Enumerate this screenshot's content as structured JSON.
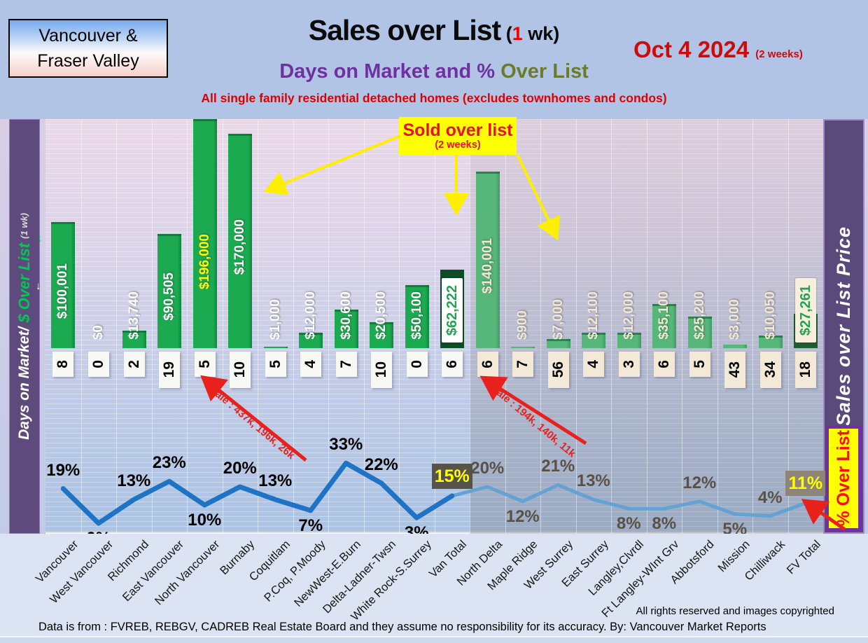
{
  "header": {
    "region_box": {
      "line1": "Vancouver &",
      "line2": "Fraser Valley"
    },
    "title": {
      "main": "Sales over List",
      "paren": " (",
      "red": "1",
      "rest": " wk)"
    },
    "subtitle": {
      "purple": "Days on Market and % ",
      "olive": "Over List"
    },
    "note": "All single family residential detached homes (excludes townhomes and condos)",
    "date": {
      "main": "Oct 4  2024",
      "sub": "(2 weeks)"
    }
  },
  "left_axis": {
    "white": "Days on Market/",
    "green": " $ Over List ",
    "small": "(1 wk)"
  },
  "right_axis": {
    "label": "Sales over List Price"
  },
  "annotations": {
    "sold_over_list_line1": "Sold over list",
    "sold_over_list_line2": "(2 weeks)",
    "van_3sale": "3 sale : 437k, 196k, 26k",
    "fv_3sale": "3 sale : 194k, 140k, 11k",
    "pct_over_list": "% Over List"
  },
  "footer": {
    "rights": "All rights reserved and  images copyrighted",
    "source": "Data is from : FVREB, REBGV, CADREB Real Estate Board and they assume no responsibility for its accuracy. By: Vancouver Market Reports"
  },
  "colors": {
    "van_bar": "#1caa50",
    "van_bar_edge": "#0f8740",
    "van_total_bar": "#0c4c26",
    "fv_bar": "#57b679",
    "fv_bar_edge": "#3f9b61",
    "fv_total_bar": "#1e5c31",
    "line_van": "#1e73c4",
    "line_fv": "#64a2d4",
    "pct_van": "#000000",
    "pct_fv": "#5a5146",
    "pct_box_van_bg": "#55534a",
    "pct_box_fv_bg": "#8d8577",
    "pct_box_text": "#ffff00",
    "days_box_van": "#f8f8f5",
    "days_box_fv": "#f3e9d6",
    "total_box_van_bg": "#ffffff",
    "total_box_fv_bg": "#f7efdc",
    "total_box_text": "#21a351",
    "bar_label_van": "#ffffff",
    "bar_label_fv": "#f2e8d4",
    "bar_label_highlight": "#ffff00"
  },
  "chart_data": {
    "type": "combo-bar-line",
    "bar_series_name": "$ Over List (1 wk)",
    "line_series_name": "% Over List",
    "days_series_name": "Days on Market",
    "fv_start_index": 12,
    "categories": [
      {
        "name": "Vancouver",
        "over_list": 100001,
        "label": "$100,001",
        "days": 8,
        "pct": 19,
        "pct_pos": "above"
      },
      {
        "name": "West Vancouver",
        "over_list": 0,
        "label": "$0",
        "days": 0,
        "pct": 0,
        "pct_pos": "below"
      },
      {
        "name": "Richmond",
        "over_list": 13740,
        "label": "$13,740",
        "days": 2,
        "pct": 13,
        "pct_pos": "above"
      },
      {
        "name": "East Vancouver",
        "over_list": 90505,
        "label": "$90,505",
        "days": 19,
        "pct": 23,
        "pct_pos": "above"
      },
      {
        "name": "North Vancouver",
        "over_list": 196000,
        "label": "$196,000",
        "days": 5,
        "pct": 10,
        "pct_pos": "below",
        "highlight": true
      },
      {
        "name": "Burnaby",
        "over_list": 170000,
        "label": "$170,000",
        "days": 10,
        "pct": 20,
        "pct_pos": "above"
      },
      {
        "name": "Coquitlam",
        "over_list": 1000,
        "label": "$1,000",
        "days": 5,
        "pct": 13,
        "pct_pos": "above"
      },
      {
        "name": "P.Coq, P.Moody",
        "over_list": 12000,
        "label": "$12,000",
        "days": 4,
        "pct": 7,
        "pct_pos": "below"
      },
      {
        "name": "NewWest-E.Burn",
        "over_list": 30600,
        "label": "$30,600",
        "days": 7,
        "pct": 33,
        "pct_pos": "above"
      },
      {
        "name": "Delta-Ladner-Twsn",
        "over_list": 20500,
        "label": "$20,500",
        "days": 10,
        "pct": 22,
        "pct_pos": "above"
      },
      {
        "name": "White Rock-S.Surrey",
        "over_list": 50100,
        "label": "$50,100",
        "days": 0,
        "pct": 3,
        "pct_pos": "below"
      },
      {
        "name": "Van Total",
        "over_list": 62222,
        "label": "$62,222",
        "days": 6,
        "pct": 15,
        "pct_pos": "above",
        "total": true
      },
      {
        "name": "North Delta",
        "over_list": 140001,
        "label": "$140,001",
        "days": 6,
        "pct": 20,
        "pct_pos": "above"
      },
      {
        "name": "Maple Ridge",
        "over_list": 900,
        "label": "$900",
        "days": 7,
        "pct": 12,
        "pct_pos": "below"
      },
      {
        "name": "West Surrey",
        "over_list": 7000,
        "label": "$7,000",
        "days": 56,
        "pct": 21,
        "pct_pos": "above"
      },
      {
        "name": "East Surrey",
        "over_list": 12100,
        "label": "$12,100",
        "days": 4,
        "pct": 13,
        "pct_pos": "above"
      },
      {
        "name": "Langley,Clvrdl",
        "over_list": 12000,
        "label": "$12,000",
        "days": 3,
        "pct": 8,
        "pct_pos": "below"
      },
      {
        "name": "Ft Langley-WInt Grv",
        "over_list": 35100,
        "label": "$35,100",
        "days": 6,
        "pct": 8,
        "pct_pos": "below"
      },
      {
        "name": "Abbotsford",
        "over_list": 25200,
        "label": "$25,200",
        "days": 5,
        "pct": 12,
        "pct_pos": "above"
      },
      {
        "name": "Mission",
        "over_list": 3000,
        "label": "$3,000",
        "days": 43,
        "pct": 5,
        "pct_pos": "below"
      },
      {
        "name": "Chilliwack",
        "over_list": 10050,
        "label": "$10,050",
        "days": 34,
        "pct": 4,
        "pct_pos": "above"
      },
      {
        "name": "FV Total",
        "over_list": 27261,
        "label": "$27,261",
        "days": 18,
        "pct": 11,
        "pct_pos": "above",
        "total": true
      }
    ]
  }
}
